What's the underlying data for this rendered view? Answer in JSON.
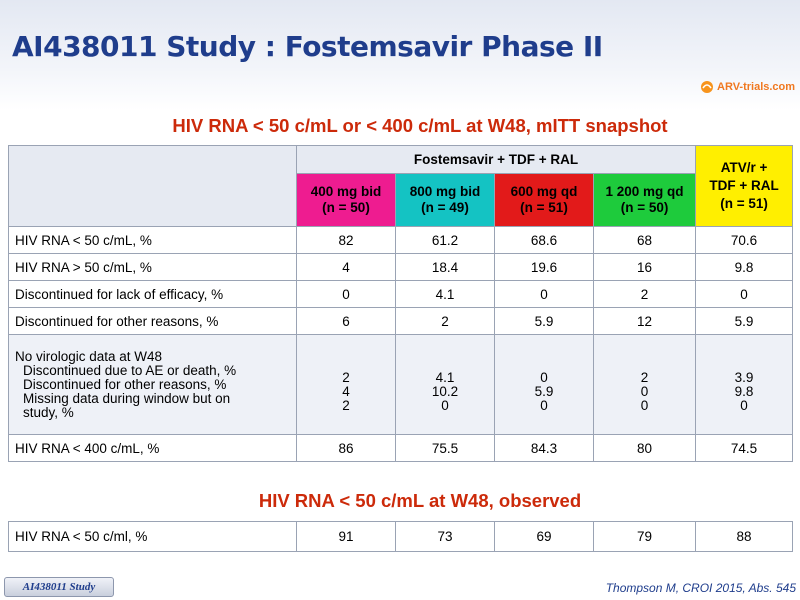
{
  "title": "AI438011 Study : Fostemsavir Phase II",
  "logo": {
    "text": "ARV-trials.com"
  },
  "heading_1": "HIV RNA < 50 c/mL or < 400 c/mL at W48, mITT snapshot",
  "heading_2": "HIV RNA < 50 c/mL at W48, observed",
  "table1": {
    "group_header": "Fostemsavir + TDF + RAL",
    "arms": [
      {
        "line1": "400 mg bid",
        "line2": "(n = 50)",
        "color": "#ee1c90"
      },
      {
        "line1": "800 mg bid",
        "line2": "(n = 49)",
        "color": "#14c3c3"
      },
      {
        "line1": "600 mg qd",
        "line2": "(n = 51)",
        "color": "#e21a1a"
      },
      {
        "line1": "1 200 mg qd",
        "line2": "(n = 50)",
        "color": "#1ecb3c"
      }
    ],
    "comparator": {
      "line1": "ATV/r +",
      "line2": "TDF + RAL",
      "line3": "(n = 51)",
      "color": "#ffef00"
    },
    "rows": [
      {
        "label": "HIV RNA < 50 c/mL, %",
        "values": [
          "82",
          "61.2",
          "68.6",
          "68",
          "70.6"
        ]
      },
      {
        "label": "HIV RNA > 50 c/mL, %",
        "values": [
          "4",
          "18.4",
          "19.6",
          "16",
          "9.8"
        ]
      },
      {
        "label": "Discontinued for lack of efficacy, %",
        "values": [
          "0",
          "4.1",
          "0",
          "2",
          "0"
        ]
      },
      {
        "label": "Discontinued  for other reasons, %",
        "values": [
          "6",
          "2",
          "5.9",
          "12",
          "5.9"
        ]
      }
    ],
    "no_data_row": {
      "label": "No virologic data at W48",
      "sub1": "Discontinued due to AE or death, %",
      "sub2": "Discontinued for other reasons, %",
      "sub3a": "Missing data during window but on",
      "sub3b": "study, %",
      "values": [
        [
          "2",
          "4",
          "2"
        ],
        [
          "4.1",
          "10.2",
          "0"
        ],
        [
          "0",
          "5.9",
          "0"
        ],
        [
          "2",
          "0",
          "0"
        ],
        [
          "3.9",
          "9.8",
          "0"
        ]
      ]
    },
    "last_row": {
      "label": "HIV RNA < 400 c/mL, %",
      "values": [
        "86",
        "75.5",
        "84.3",
        "80",
        "74.5"
      ]
    }
  },
  "table2": {
    "row": {
      "label": "HIV RNA < 50 c/ml, %",
      "values": [
        "91",
        "73",
        "69",
        "79",
        "88"
      ]
    }
  },
  "footer": {
    "tab_label": "AI438011 Study",
    "citation": "Thompson M, CROI 2015, Abs. 545"
  }
}
